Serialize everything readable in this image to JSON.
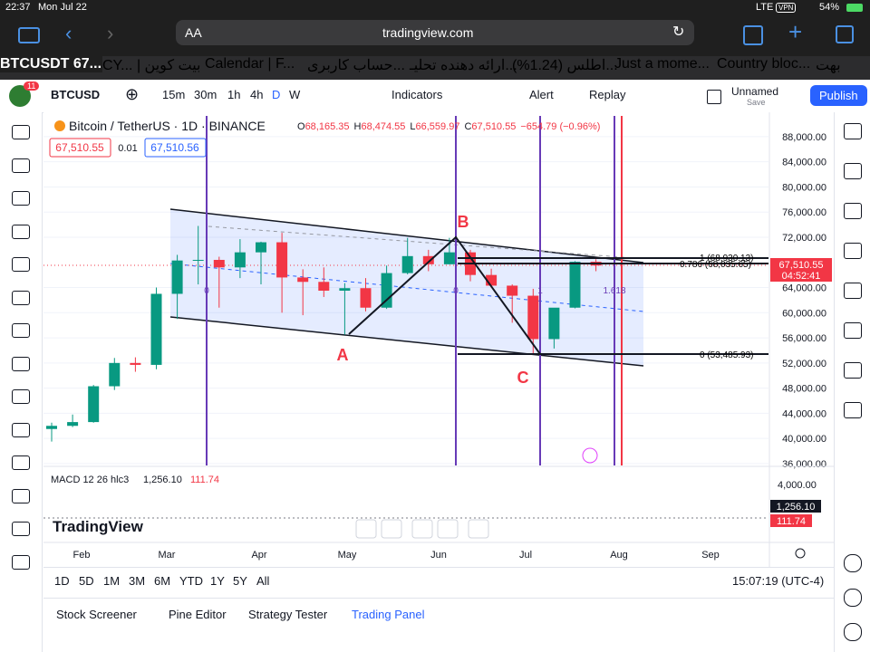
{
  "status_bar": {
    "time": "22:37",
    "date": "Mon Jul 22",
    "network": "LTE",
    "vpn": "VPN",
    "battery": "54%"
  },
  "browser": {
    "text_size": "AA",
    "url": "tradingview.com"
  },
  "tabs": [
    "BTCUSDT 67...",
    "CY... | بیت کوین",
    "Calendar | F...",
    "حساب کاربری...",
    "ارائه دهنده تحلیـ...",
    "اطلس (1.24%)...",
    "Just a mome...",
    "Country bloc...",
    "بهت"
  ],
  "toolbar": {
    "badge": "11",
    "symbol": "BTCUSD",
    "intervals": [
      "15m",
      "30m",
      "1h",
      "4h",
      "D",
      "W"
    ],
    "indicators": "Indicators",
    "alert": "Alert",
    "replay": "Replay",
    "layout_name": "Unnamed",
    "save": "Save",
    "publish": "Publish"
  },
  "chart_data": {
    "type": "candlestick",
    "title": "Bitcoin / TetherUS · 1D · BINANCE",
    "ohlc": [
      {
        "label": "O",
        "value": "68,165.35"
      },
      {
        "label": "H",
        "value": "68,474.55"
      },
      {
        "label": "L",
        "value": "66,559.97"
      },
      {
        "label": "C",
        "value": "67,510.55"
      }
    ],
    "change": "−654.79 (−0.96%)",
    "price_boxes": [
      "67,510.55",
      "0.01",
      "67,510.56"
    ],
    "candles": {
      "open": [
        41500,
        42000,
        42600,
        48300,
        52000,
        51700,
        63000,
        68300,
        68400,
        67200,
        69600,
        71200,
        65600,
        64900,
        63500,
        63900,
        60800,
        66300,
        69000,
        67700,
        69600,
        66000,
        64300,
        62700,
        55800,
        60800,
        68100
      ],
      "high": [
        42500,
        43800,
        48500,
        52800,
        52900,
        64000,
        69200,
        73800,
        68900,
        71700,
        71300,
        72700,
        66900,
        67200,
        64700,
        65500,
        67500,
        71900,
        70000,
        71900,
        70000,
        67000,
        64500,
        63800,
        59600,
        68200,
        68500
      ],
      "low": [
        39500,
        41800,
        42500,
        47700,
        50600,
        51000,
        59000,
        64500,
        60800,
        65500,
        64500,
        60000,
        59600,
        62500,
        56500,
        60200,
        60600,
        66100,
        66600,
        67700,
        65000,
        64000,
        58400,
        53500,
        54300,
        60700,
        66600
      ],
      "close": [
        42000,
        42600,
        48300,
        52000,
        51700,
        63000,
        68300,
        68400,
        67200,
        69600,
        71200,
        65600,
        64900,
        63500,
        63900,
        60800,
        66300,
        69000,
        67700,
        69600,
        66000,
        64300,
        62700,
        55800,
        60800,
        68100,
        67500
      ]
    },
    "up_color": "#089981",
    "down_color": "#f23645",
    "ylim": [
      35700,
      91300
    ],
    "yticks": [
      {
        "value": 36000,
        "label": "36,000.00"
      },
      {
        "value": 40000,
        "label": "40,000.00"
      },
      {
        "value": 44000,
        "label": "44,000.00"
      },
      {
        "value": 48000,
        "label": "48,000.00"
      },
      {
        "value": 52000,
        "label": "52,000.00"
      },
      {
        "value": 56000,
        "label": "56,000.00"
      },
      {
        "value": 60000,
        "label": "60,000.00"
      },
      {
        "value": 64000,
        "label": "64,000.00"
      },
      {
        "value": 72000,
        "label": "72,000.00"
      },
      {
        "value": 76000,
        "label": "76,000.00"
      },
      {
        "value": 80000,
        "label": "80,000.00"
      },
      {
        "value": 84000,
        "label": "84,000.00"
      },
      {
        "value": 88000,
        "label": "88,000.00"
      }
    ],
    "x_axis_labels": [
      "Feb",
      "Mar",
      "Apr",
      "May",
      "Jun",
      "Jul",
      "Aug",
      "Sep"
    ],
    "last_price": "67,510.55",
    "countdown": "04:52:41",
    "fib_labels": [
      "1 (68,930.13)",
      "0.786 (68,035.65)",
      "0 (53,485.93)"
    ],
    "wave_labels": [
      "A",
      "B",
      "C"
    ],
    "cycle_labels": [
      "0",
      "0",
      "1",
      "1.618"
    ],
    "macd": {
      "title": "MACD 12 26 hlc3",
      "value": "1,256.10",
      "signal": "111.74",
      "axis_label": "4,000.00"
    },
    "watermark": "TradingView"
  },
  "bottom_bar": {
    "ranges": [
      "1D",
      "5D",
      "1M",
      "3M",
      "6M",
      "YTD",
      "1Y",
      "5Y",
      "All"
    ],
    "clock": "15:07:19 (UTC-4)"
  },
  "panel_tabs": [
    "Stock Screener",
    "Pine Editor",
    "Strategy Tester",
    "Trading Panel"
  ]
}
